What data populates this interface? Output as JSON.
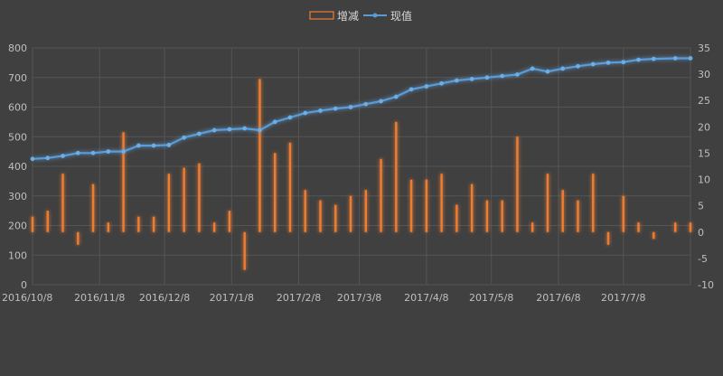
{
  "chart_data": {
    "type": "bar+line",
    "legend": {
      "position": "top",
      "entries": [
        "增减",
        "现值"
      ]
    },
    "x_tick_labels": [
      "2016/10/8",
      "2016/11/8",
      "2016/12/8",
      "2017/1/8",
      "2017/2/8",
      "2017/3/8",
      "2017/4/8",
      "2017/5/8",
      "2017/6/8",
      "2017/7/8"
    ],
    "x_ticks": [
      "2016-10-08",
      "2016-11-08",
      "2016-12-08",
      "2017-01-08",
      "2017-02-08",
      "2017-03-08",
      "2017-04-08",
      "2017-05-08",
      "2017-06-08",
      "2017-07-08"
    ],
    "x_range": [
      "2016-10-08",
      "2017-08-08"
    ],
    "y_left": {
      "range": [
        0,
        800
      ],
      "ticks": [
        0,
        100,
        200,
        300,
        400,
        500,
        600,
        700,
        800
      ]
    },
    "y_right": {
      "range": [
        -10,
        35
      ],
      "ticks": [
        -10,
        -5,
        0,
        5,
        10,
        15,
        20,
        25,
        30,
        35
      ]
    },
    "grid": true,
    "series": [
      {
        "name": "增减",
        "type": "bar",
        "axis": "left",
        "color": "#ed7d31",
        "x": [
          "2016-10-08",
          "2016-10-15",
          "2016-10-22",
          "2016-10-29",
          "2016-11-05",
          "2016-11-12",
          "2016-11-19",
          "2016-11-26",
          "2016-12-03",
          "2016-12-10",
          "2016-12-17",
          "2016-12-24",
          "2016-12-31",
          "2017-01-07",
          "2017-01-14",
          "2017-01-21",
          "2017-01-28",
          "2017-02-04",
          "2017-02-11",
          "2017-02-18",
          "2017-02-25",
          "2017-03-04",
          "2017-03-11",
          "2017-03-18",
          "2017-03-25",
          "2017-04-01",
          "2017-04-08",
          "2017-04-15",
          "2017-04-22",
          "2017-04-29",
          "2017-05-06",
          "2017-05-13",
          "2017-05-20",
          "2017-05-27",
          "2017-06-03",
          "2017-06-10",
          "2017-06-17",
          "2017-06-24",
          "2017-07-01",
          "2017-07-08",
          "2017-07-15",
          "2017-07-22",
          "2017-08-01",
          "2017-08-08"
        ],
        "values": [
          230,
          250,
          375,
          135,
          340,
          210,
          515,
          230,
          230,
          375,
          395,
          410,
          210,
          250,
          50,
          695,
          445,
          480,
          320,
          285,
          270,
          300,
          320,
          425,
          550,
          355,
          355,
          375,
          270,
          340,
          285,
          285,
          500,
          210,
          375,
          320,
          285,
          375,
          135,
          300,
          210,
          155,
          210,
          210
        ]
      },
      {
        "name": "现值",
        "type": "line",
        "axis": "left",
        "color": "#5b9bd5",
        "x": [
          "2016-10-08",
          "2016-10-15",
          "2016-10-22",
          "2016-10-29",
          "2016-11-05",
          "2016-11-12",
          "2016-11-19",
          "2016-11-26",
          "2016-12-03",
          "2016-12-10",
          "2016-12-17",
          "2016-12-24",
          "2016-12-31",
          "2017-01-07",
          "2017-01-14",
          "2017-01-21",
          "2017-01-28",
          "2017-02-04",
          "2017-02-11",
          "2017-02-18",
          "2017-02-25",
          "2017-03-04",
          "2017-03-11",
          "2017-03-18",
          "2017-03-25",
          "2017-04-01",
          "2017-04-08",
          "2017-04-15",
          "2017-04-22",
          "2017-04-29",
          "2017-05-06",
          "2017-05-13",
          "2017-05-20",
          "2017-05-27",
          "2017-06-03",
          "2017-06-10",
          "2017-06-17",
          "2017-06-24",
          "2017-07-01",
          "2017-07-08",
          "2017-07-15",
          "2017-07-22",
          "2017-08-01",
          "2017-08-08"
        ],
        "values": [
          425,
          428,
          435,
          445,
          445,
          450,
          450,
          470,
          470,
          472,
          497,
          510,
          522,
          525,
          528,
          522,
          550,
          565,
          580,
          588,
          595,
          600,
          610,
          620,
          635,
          660,
          670,
          680,
          690,
          695,
          700,
          705,
          710,
          730,
          720,
          730,
          738,
          745,
          750,
          752,
          760,
          763,
          765,
          765
        ]
      }
    ]
  }
}
